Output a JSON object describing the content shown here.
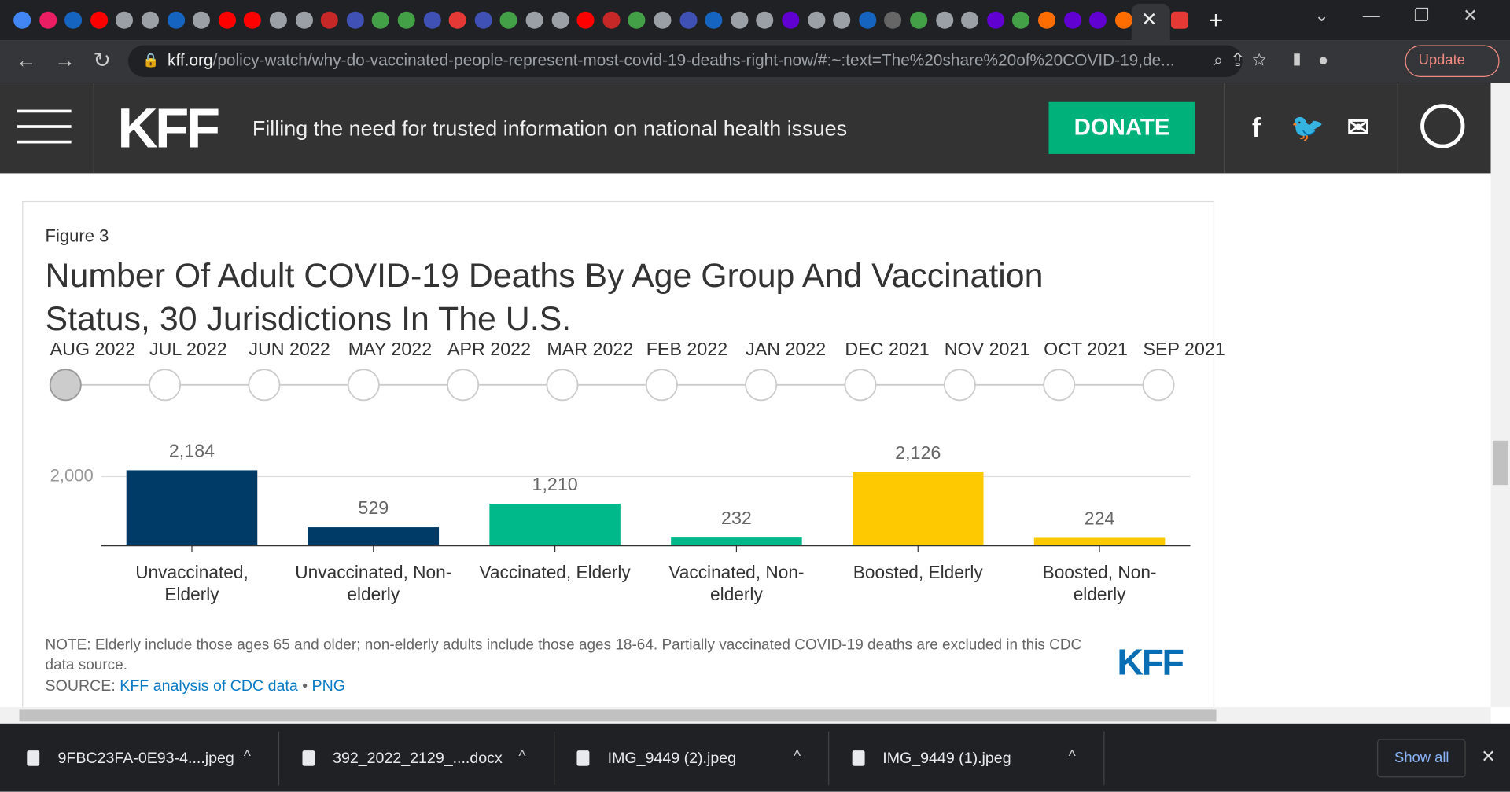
{
  "browser": {
    "url_host": "kff.org",
    "url_path": "/policy-watch/why-do-vaccinated-people-represent-most-covid-19-deaths-right-now/#:~:text=The%20share%20of%20COVID-19,de...",
    "update": "Update"
  },
  "site": {
    "logo": "KFF",
    "tagline": "Filling the need for trusted information on national health issues",
    "donate": "DONATE"
  },
  "figure": {
    "label": "Figure 3",
    "timeline": [
      "AUG 2022",
      "JUL 2022",
      "JUN 2022",
      "MAY 2022",
      "APR 2022",
      "MAR 2022",
      "FEB 2022",
      "JAN 2022",
      "DEC 2021",
      "NOV 2021",
      "OCT 2021",
      "SEP 2021"
    ],
    "note": "NOTE: Elderly include those ages 65 and older; non-elderly adults include those ages 18-64. Partially vaccinated COVID-19 deaths are excluded in this CDC data source.",
    "source_label": "SOURCE:",
    "source_link": "KFF analysis of CDC data",
    "separator": "•",
    "png": "PNG",
    "logo": "KFF"
  },
  "chart_data": {
    "type": "bar",
    "title": "Number Of Adult COVID-19 Deaths By Age Group And Vaccination Status, 30 Jurisdictions In The U.S.",
    "categories": [
      "Unvaccinated, Elderly",
      "Unvaccinated, Non-elderly",
      "Vaccinated, Elderly",
      "Vaccinated, Non-elderly",
      "Boosted, Elderly",
      "Boosted, Non-elderly"
    ],
    "values": [
      2184,
      529,
      1210,
      232,
      2126,
      224
    ],
    "value_labels": [
      "2,184",
      "529",
      "1,210",
      "232",
      "2,126",
      "224"
    ],
    "colors": [
      "#003a66",
      "#003a66",
      "#00b98a",
      "#00b98a",
      "#ffc900",
      "#ffc900"
    ],
    "ylim": [
      0,
      2400
    ],
    "yticks": [
      {
        "value": 2000,
        "label": "2,000"
      }
    ],
    "grid": true
  },
  "downloads": {
    "files": [
      "9FBC23FA-0E93-4....jpeg",
      "392_2022_2129_....docx",
      "IMG_9449 (2).jpeg",
      "IMG_9449 (1).jpeg"
    ],
    "show_all": "Show all"
  }
}
